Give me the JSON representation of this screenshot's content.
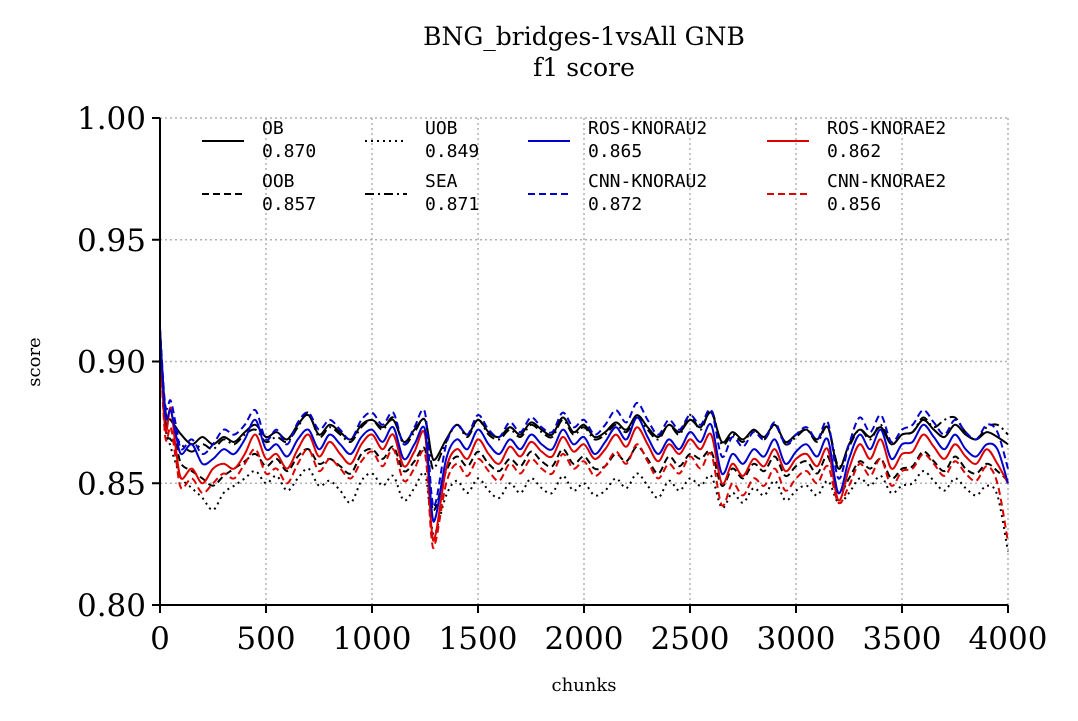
{
  "chart_data": {
    "type": "line",
    "title": "BNG_bridges-1vsAll GNB",
    "subtitle": "f1 score",
    "xlabel": "chunks",
    "ylabel": "score",
    "xlim": [
      0,
      4000
    ],
    "ylim": [
      0.8,
      1.0
    ],
    "xticks": [
      "0",
      "500",
      "1000",
      "1500",
      "2000",
      "2500",
      "3000",
      "3500",
      "4000"
    ],
    "yticks": [
      "0.80",
      "0.85",
      "0.90",
      "0.95",
      "1.00"
    ],
    "grid": true,
    "legend_position": "top",
    "x": [
      0,
      25,
      50,
      75,
      100,
      150,
      200,
      250,
      300,
      350,
      400,
      450,
      500,
      550,
      600,
      650,
      700,
      750,
      800,
      850,
      900,
      950,
      1000,
      1050,
      1100,
      1150,
      1200,
      1250,
      1280,
      1300,
      1350,
      1400,
      1450,
      1500,
      1550,
      1600,
      1650,
      1700,
      1750,
      1800,
      1850,
      1900,
      1950,
      2000,
      2050,
      2100,
      2150,
      2200,
      2250,
      2300,
      2350,
      2400,
      2450,
      2500,
      2550,
      2600,
      2650,
      2700,
      2750,
      2800,
      2850,
      2900,
      2950,
      3000,
      3050,
      3100,
      3150,
      3200,
      3250,
      3300,
      3350,
      3400,
      3450,
      3500,
      3550,
      3600,
      3650,
      3700,
      3750,
      3800,
      3850,
      3900,
      3950,
      4000
    ],
    "series": [
      {
        "name": "OB",
        "value_label": "0.870",
        "color": "#000000",
        "dash": "solid",
        "values": [
          0.912,
          0.88,
          0.876,
          0.873,
          0.87,
          0.866,
          0.869,
          0.866,
          0.869,
          0.867,
          0.871,
          0.874,
          0.869,
          0.871,
          0.868,
          0.874,
          0.878,
          0.87,
          0.874,
          0.871,
          0.868,
          0.874,
          0.876,
          0.873,
          0.876,
          0.867,
          0.872,
          0.876,
          0.862,
          0.86,
          0.868,
          0.874,
          0.87,
          0.876,
          0.871,
          0.869,
          0.873,
          0.87,
          0.875,
          0.872,
          0.87,
          0.877,
          0.871,
          0.874,
          0.869,
          0.871,
          0.875,
          0.872,
          0.878,
          0.873,
          0.869,
          0.874,
          0.871,
          0.876,
          0.873,
          0.879,
          0.867,
          0.871,
          0.868,
          0.872,
          0.869,
          0.874,
          0.867,
          0.87,
          0.872,
          0.868,
          0.873,
          0.856,
          0.866,
          0.872,
          0.869,
          0.873,
          0.866,
          0.87,
          0.871,
          0.876,
          0.872,
          0.869,
          0.874,
          0.87,
          0.868,
          0.871,
          0.869,
          0.866
        ]
      },
      {
        "name": "OOB",
        "value_label": "0.857",
        "color": "#000000",
        "dash": "dashed",
        "values": [
          0.905,
          0.873,
          0.868,
          0.866,
          0.858,
          0.855,
          0.852,
          0.849,
          0.853,
          0.856,
          0.859,
          0.862,
          0.857,
          0.86,
          0.855,
          0.861,
          0.864,
          0.858,
          0.86,
          0.857,
          0.854,
          0.862,
          0.864,
          0.86,
          0.865,
          0.855,
          0.859,
          0.864,
          0.842,
          0.84,
          0.855,
          0.861,
          0.857,
          0.863,
          0.858,
          0.855,
          0.86,
          0.857,
          0.863,
          0.859,
          0.857,
          0.864,
          0.858,
          0.861,
          0.856,
          0.857,
          0.862,
          0.859,
          0.865,
          0.86,
          0.854,
          0.861,
          0.857,
          0.862,
          0.86,
          0.863,
          0.849,
          0.856,
          0.852,
          0.858,
          0.855,
          0.861,
          0.853,
          0.857,
          0.859,
          0.854,
          0.861,
          0.846,
          0.852,
          0.859,
          0.856,
          0.86,
          0.852,
          0.856,
          0.857,
          0.863,
          0.859,
          0.855,
          0.861,
          0.856,
          0.854,
          0.858,
          0.855,
          0.851
        ]
      },
      {
        "name": "UOB",
        "value_label": "0.849",
        "color": "#000000",
        "dash": "dotted",
        "values": [
          0.908,
          0.874,
          0.865,
          0.858,
          0.852,
          0.848,
          0.844,
          0.839,
          0.846,
          0.849,
          0.852,
          0.855,
          0.85,
          0.853,
          0.847,
          0.852,
          0.856,
          0.849,
          0.851,
          0.847,
          0.842,
          0.851,
          0.854,
          0.849,
          0.853,
          0.843,
          0.848,
          0.854,
          0.833,
          0.83,
          0.845,
          0.851,
          0.846,
          0.852,
          0.847,
          0.844,
          0.85,
          0.846,
          0.852,
          0.848,
          0.846,
          0.853,
          0.847,
          0.85,
          0.845,
          0.847,
          0.852,
          0.848,
          0.854,
          0.849,
          0.844,
          0.851,
          0.847,
          0.852,
          0.849,
          0.853,
          0.84,
          0.846,
          0.842,
          0.848,
          0.845,
          0.851,
          0.843,
          0.847,
          0.849,
          0.845,
          0.851,
          0.842,
          0.846,
          0.852,
          0.849,
          0.853,
          0.846,
          0.849,
          0.85,
          0.855,
          0.851,
          0.847,
          0.852,
          0.848,
          0.845,
          0.849,
          0.845,
          0.822
        ]
      },
      {
        "name": "SEA",
        "value_label": "0.871",
        "color": "#000000",
        "dash": "dashdot",
        "values": [
          0.907,
          0.876,
          0.872,
          0.869,
          0.866,
          0.863,
          0.866,
          0.864,
          0.868,
          0.866,
          0.87,
          0.872,
          0.867,
          0.869,
          0.867,
          0.873,
          0.879,
          0.869,
          0.873,
          0.87,
          0.867,
          0.873,
          0.876,
          0.872,
          0.877,
          0.866,
          0.871,
          0.876,
          0.858,
          0.857,
          0.867,
          0.874,
          0.869,
          0.876,
          0.87,
          0.868,
          0.872,
          0.869,
          0.874,
          0.871,
          0.869,
          0.876,
          0.87,
          0.873,
          0.868,
          0.87,
          0.874,
          0.871,
          0.877,
          0.872,
          0.868,
          0.874,
          0.87,
          0.878,
          0.872,
          0.88,
          0.866,
          0.87,
          0.867,
          0.872,
          0.868,
          0.874,
          0.866,
          0.869,
          0.872,
          0.867,
          0.873,
          0.857,
          0.865,
          0.872,
          0.868,
          0.874,
          0.866,
          0.87,
          0.871,
          0.877,
          0.873,
          0.876,
          0.877,
          0.871,
          0.868,
          0.873,
          0.874,
          0.87
        ]
      },
      {
        "name": "ROS-KNORAU2",
        "value_label": "0.865",
        "color": "#0000cc",
        "dash": "solid",
        "values": [
          0.913,
          0.878,
          0.88,
          0.87,
          0.862,
          0.866,
          0.858,
          0.86,
          0.864,
          0.862,
          0.868,
          0.876,
          0.864,
          0.866,
          0.861,
          0.868,
          0.872,
          0.864,
          0.87,
          0.866,
          0.862,
          0.869,
          0.872,
          0.867,
          0.873,
          0.86,
          0.866,
          0.872,
          0.84,
          0.836,
          0.86,
          0.868,
          0.864,
          0.872,
          0.866,
          0.862,
          0.868,
          0.864,
          0.87,
          0.866,
          0.864,
          0.872,
          0.866,
          0.869,
          0.862,
          0.867,
          0.873,
          0.868,
          0.877,
          0.869,
          0.862,
          0.868,
          0.864,
          0.871,
          0.867,
          0.874,
          0.854,
          0.862,
          0.858,
          0.864,
          0.861,
          0.868,
          0.858,
          0.863,
          0.866,
          0.861,
          0.868,
          0.846,
          0.86,
          0.87,
          0.864,
          0.872,
          0.86,
          0.866,
          0.867,
          0.874,
          0.869,
          0.864,
          0.87,
          0.864,
          0.861,
          0.866,
          0.864,
          0.85
        ]
      },
      {
        "name": "CNN-KNORAU2",
        "value_label": "0.872",
        "color": "#0000cc",
        "dash": "dashed",
        "values": [
          0.914,
          0.882,
          0.884,
          0.874,
          0.864,
          0.868,
          0.862,
          0.866,
          0.872,
          0.87,
          0.874,
          0.88,
          0.868,
          0.872,
          0.866,
          0.875,
          0.879,
          0.872,
          0.876,
          0.872,
          0.868,
          0.876,
          0.879,
          0.874,
          0.879,
          0.866,
          0.873,
          0.879,
          0.846,
          0.842,
          0.866,
          0.874,
          0.87,
          0.878,
          0.872,
          0.869,
          0.875,
          0.871,
          0.877,
          0.873,
          0.871,
          0.879,
          0.873,
          0.876,
          0.87,
          0.874,
          0.88,
          0.875,
          0.883,
          0.876,
          0.87,
          0.876,
          0.872,
          0.878,
          0.874,
          0.88,
          0.861,
          0.869,
          0.865,
          0.871,
          0.868,
          0.875,
          0.866,
          0.87,
          0.873,
          0.868,
          0.875,
          0.852,
          0.866,
          0.877,
          0.871,
          0.878,
          0.867,
          0.872,
          0.874,
          0.88,
          0.875,
          0.87,
          0.876,
          0.871,
          0.868,
          0.874,
          0.871,
          0.856
        ]
      },
      {
        "name": "ROS-KNORAE2",
        "value_label": "0.862",
        "color": "#dd0000",
        "dash": "solid",
        "values": [
          0.909,
          0.872,
          0.881,
          0.864,
          0.852,
          0.856,
          0.85,
          0.856,
          0.858,
          0.856,
          0.862,
          0.87,
          0.86,
          0.862,
          0.856,
          0.864,
          0.87,
          0.861,
          0.867,
          0.862,
          0.858,
          0.866,
          0.87,
          0.864,
          0.87,
          0.857,
          0.863,
          0.87,
          0.832,
          0.829,
          0.856,
          0.864,
          0.86,
          0.868,
          0.862,
          0.858,
          0.865,
          0.861,
          0.867,
          0.863,
          0.861,
          0.869,
          0.863,
          0.866,
          0.86,
          0.864,
          0.87,
          0.865,
          0.873,
          0.866,
          0.859,
          0.866,
          0.862,
          0.868,
          0.864,
          0.87,
          0.85,
          0.858,
          0.853,
          0.86,
          0.857,
          0.864,
          0.855,
          0.86,
          0.862,
          0.857,
          0.864,
          0.843,
          0.856,
          0.866,
          0.86,
          0.868,
          0.856,
          0.862,
          0.863,
          0.87,
          0.865,
          0.86,
          0.866,
          0.861,
          0.858,
          0.864,
          0.858,
          0.85
        ]
      },
      {
        "name": "CNN-KNORAE2",
        "value_label": "0.856",
        "color": "#dd0000",
        "dash": "dashed",
        "values": [
          0.906,
          0.869,
          0.873,
          0.86,
          0.848,
          0.852,
          0.846,
          0.85,
          0.854,
          0.852,
          0.858,
          0.864,
          0.854,
          0.856,
          0.85,
          0.858,
          0.864,
          0.855,
          0.86,
          0.856,
          0.852,
          0.859,
          0.863,
          0.857,
          0.864,
          0.851,
          0.856,
          0.862,
          0.828,
          0.826,
          0.85,
          0.858,
          0.853,
          0.86,
          0.855,
          0.851,
          0.858,
          0.854,
          0.86,
          0.856,
          0.854,
          0.862,
          0.856,
          0.859,
          0.853,
          0.857,
          0.863,
          0.858,
          0.866,
          0.859,
          0.852,
          0.858,
          0.854,
          0.861,
          0.856,
          0.862,
          0.841,
          0.85,
          0.845,
          0.852,
          0.849,
          0.856,
          0.847,
          0.852,
          0.855,
          0.85,
          0.857,
          0.842,
          0.849,
          0.858,
          0.853,
          0.86,
          0.849,
          0.855,
          0.856,
          0.862,
          0.858,
          0.853,
          0.859,
          0.854,
          0.851,
          0.857,
          0.85,
          0.826
        ]
      }
    ]
  }
}
